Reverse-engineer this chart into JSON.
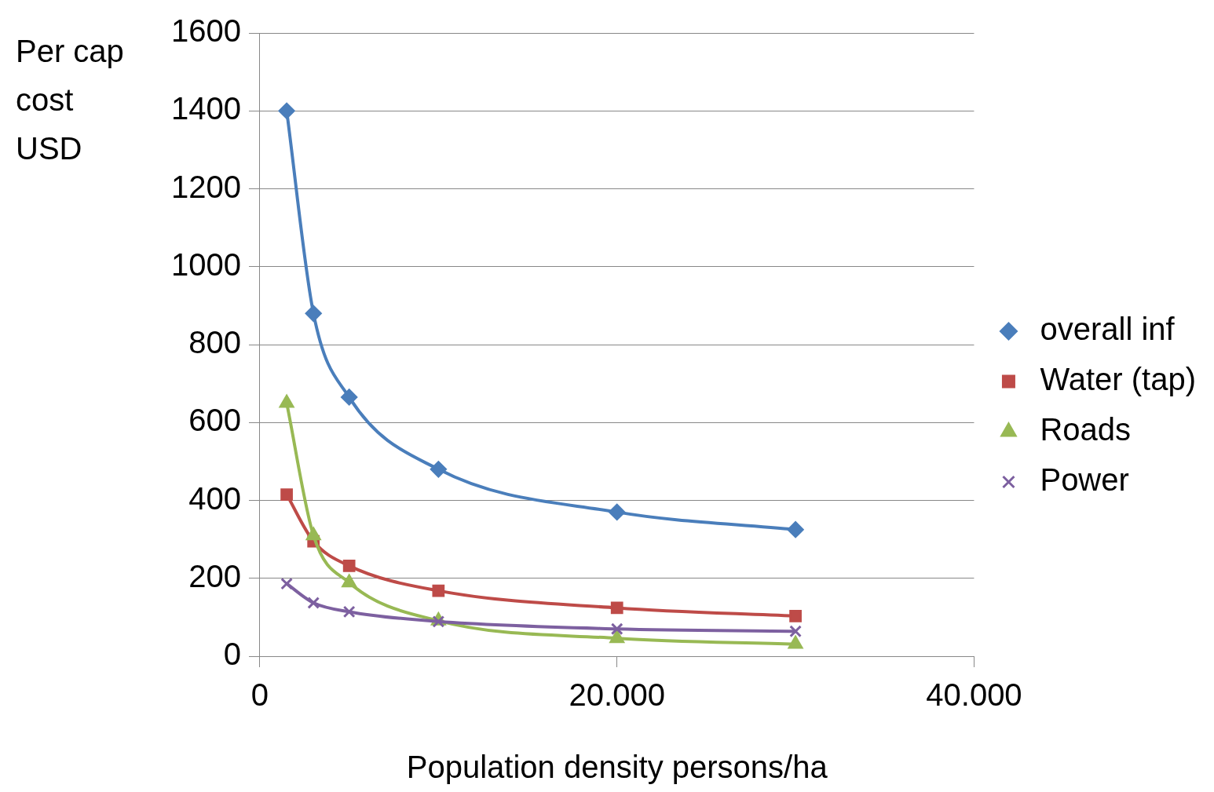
{
  "chart_data": {
    "type": "line",
    "xlabel": "Population density persons/ha",
    "ylabel": "Per cap cost USD",
    "x": [
      1500,
      3000,
      5000,
      10000,
      20000,
      30000
    ],
    "series": [
      {
        "name": "overall inf",
        "color": "#4a7ebb",
        "marker": "diamond",
        "values": [
          1400,
          880,
          665,
          480,
          370,
          325
        ]
      },
      {
        "name": "Water (tap)",
        "color": "#be4b48",
        "marker": "square",
        "values": [
          415,
          295,
          232,
          168,
          124,
          103
        ]
      },
      {
        "name": "Roads",
        "color": "#98b954",
        "marker": "triangle",
        "values": [
          650,
          310,
          189,
          91,
          46,
          31
        ]
      },
      {
        "name": "Power",
        "color": "#7d60a0",
        "marker": "cross",
        "values": [
          186,
          137,
          114,
          89,
          70,
          64
        ]
      }
    ],
    "xlim": [
      0,
      40000
    ],
    "xticks": [
      0,
      {
        "value": 20000,
        "label": "20.000"
      },
      {
        "value": 40000,
        "label": "40.000"
      }
    ],
    "ylim": [
      0,
      1600
    ],
    "yticks": [
      0,
      200,
      400,
      600,
      800,
      1000,
      1200,
      1400,
      1600
    ],
    "grid": "y",
    "legend": "right",
    "line_style": "solid"
  }
}
